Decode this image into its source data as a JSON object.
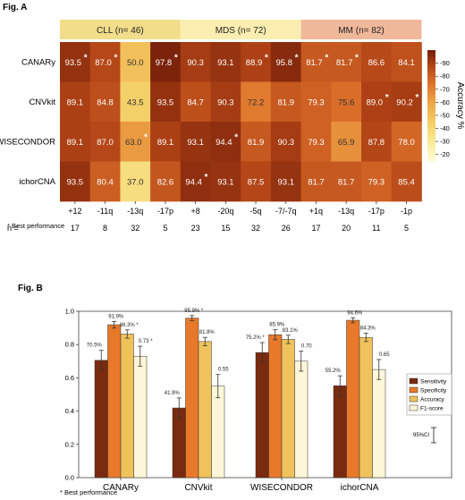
{
  "fig_a": {
    "label": "Fig. A",
    "footnote": "* Best performance",
    "n_label": "n =",
    "groups": [
      {
        "name": "CLL (n= 46)",
        "color": "#f1dd8a",
        "span": 4
      },
      {
        "name": "MDS (n= 72)",
        "color": "#fbeeb0",
        "span": 4
      },
      {
        "name": "MM (n= 82)",
        "color": "#f0b89a",
        "span": 4
      }
    ]
  },
  "fig_b": {
    "label": "Fig. B",
    "footnote": "* Best performance",
    "ci_label": "95%CI"
  },
  "chart_data": [
    {
      "type": "heatmap",
      "rows": [
        "CANARy",
        "CNVkit",
        "WISECONDOR",
        "ichorCNA"
      ],
      "columns": [
        "+12",
        "-11q",
        "-13q",
        "-17p",
        "+8",
        "-20q",
        "-5q",
        "-7/-7q",
        "+1q",
        "-13q",
        "-17p",
        "-1p"
      ],
      "n": [
        17,
        8,
        32,
        5,
        23,
        15,
        32,
        26,
        17,
        20,
        11,
        5
      ],
      "values": [
        [
          93.5,
          87.0,
          50.0,
          97.8,
          90.3,
          93.1,
          88.9,
          95.8,
          81.7,
          81.7,
          86.6,
          84.1
        ],
        [
          89.1,
          84.8,
          43.5,
          93.5,
          84.7,
          90.3,
          72.2,
          81.9,
          79.3,
          75.6,
          89.0,
          90.2
        ],
        [
          89.1,
          87.0,
          63.0,
          89.1,
          93.1,
          94.4,
          81.9,
          90.3,
          79.3,
          65.9,
          87.8,
          78.0
        ],
        [
          93.5,
          80.4,
          37.0,
          82.6,
          94.4,
          93.1,
          87.5,
          93.1,
          81.7,
          81.7,
          79.3,
          85.4
        ]
      ],
      "best": [
        [
          true,
          true,
          false,
          true,
          false,
          false,
          true,
          true,
          true,
          true,
          false,
          false
        ],
        [
          false,
          false,
          false,
          false,
          false,
          false,
          false,
          false,
          false,
          false,
          true,
          true
        ],
        [
          false,
          false,
          true,
          false,
          false,
          true,
          false,
          false,
          false,
          false,
          false,
          false
        ],
        [
          false,
          false,
          false,
          false,
          true,
          false,
          false,
          false,
          false,
          false,
          false,
          false
        ]
      ],
      "colorbar": {
        "label": "Accuracy %",
        "ticks": [
          90,
          80,
          70,
          60,
          50,
          40,
          30,
          20
        ],
        "range": [
          15,
          100
        ]
      }
    },
    {
      "type": "bar",
      "categories": [
        "CANARy",
        "CNVkit",
        "WISECONDOR",
        "ichorCNA"
      ],
      "ylim": [
        0,
        1.0
      ],
      "yticks": [
        0.0,
        0.2,
        0.4,
        0.6,
        0.8,
        1.0
      ],
      "series": [
        {
          "name": "Sensitivity",
          "color": "#7a2a0e",
          "values": [
            0.705,
            0.419,
            0.752,
            0.552
          ],
          "err": [
            0.06,
            0.06,
            0.06,
            0.06
          ],
          "labels": [
            "70.5%",
            "41.9%",
            "75.2% *",
            "55.2%"
          ]
        },
        {
          "name": "Specificity",
          "color": "#e8792a",
          "values": [
            0.919,
            0.959,
            0.859,
            0.946
          ],
          "err": [
            0.02,
            0.015,
            0.03,
            0.015
          ],
          "labels": [
            "91.9%",
            "95.9% *",
            "85.9%",
            "94.6%"
          ]
        },
        {
          "name": "Accuracy",
          "color": "#efc25c",
          "values": [
            0.863,
            0.818,
            0.831,
            0.843
          ],
          "err": [
            0.025,
            0.025,
            0.025,
            0.025
          ],
          "labels": [
            "86.3% *",
            "81.8%",
            "83.1%",
            "84.3%"
          ]
        },
        {
          "name": "F1-score",
          "color": "#fdf6d8",
          "values": [
            0.73,
            0.55,
            0.7,
            0.65
          ],
          "err": [
            0.06,
            0.07,
            0.06,
            0.06
          ],
          "labels": [
            "0.73 *",
            "0.55",
            "0.70",
            "0.65"
          ]
        }
      ]
    }
  ]
}
